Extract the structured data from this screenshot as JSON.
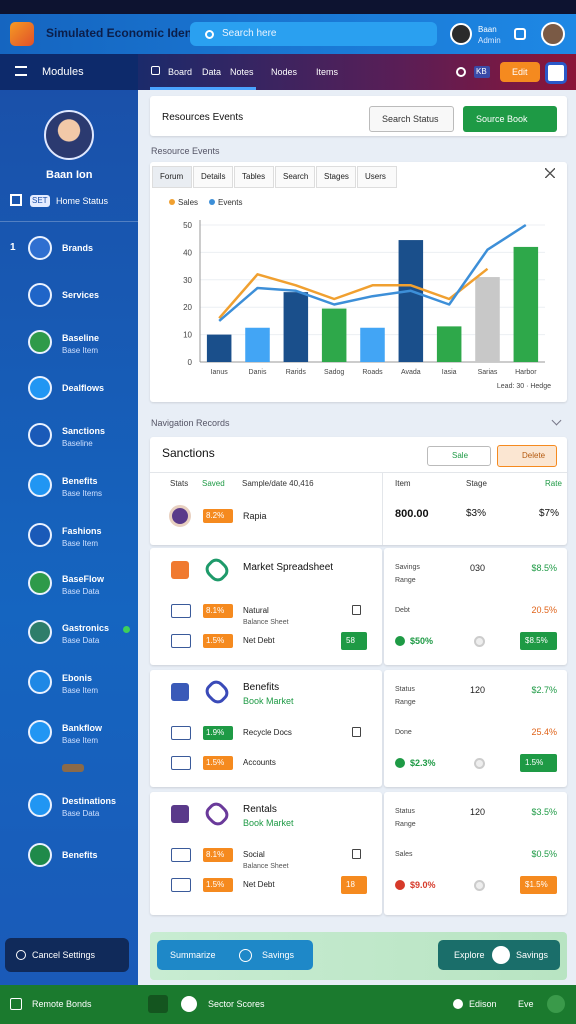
{
  "header": {
    "title": "Simulated Economic Identity",
    "search_placeholder": "Search here",
    "user_name": "Baan",
    "user_role": "Admin"
  },
  "sidebar": {
    "menu_title": "Modules",
    "profile_name": "Baan Ion",
    "status_badge": "SET",
    "profile_status": "Home Status",
    "items": [
      {
        "badge": "1",
        "label": "Brands"
      },
      {
        "label": "Services"
      },
      {
        "label": "Baseline",
        "sub": "Base Item"
      },
      {
        "label": "Dealflows"
      },
      {
        "label": "Sanctions",
        "sub": "Baseline"
      },
      {
        "label": "Benefits",
        "sub": "Base Items"
      },
      {
        "label": "Fashions",
        "sub": "Base Item"
      },
      {
        "label": "BaseFlow",
        "sub": "Base Data"
      },
      {
        "label": "Gastronics",
        "sub": "Base Data"
      },
      {
        "label": "Ebonis",
        "sub": "Base Item"
      },
      {
        "label": "Bankflow",
        "sub": "Base Item"
      },
      {
        "label": "Destinations",
        "sub": "Base Data"
      },
      {
        "label": "Benefits"
      }
    ],
    "bottom_button": "Cancel Settings"
  },
  "nav": {
    "tabs": [
      "Board",
      "Data",
      "Notes",
      "Nodes",
      "Items"
    ],
    "badge": "KB",
    "button": "Edit"
  },
  "resources": {
    "title": "Resources Events",
    "button_secondary": "Search Status",
    "button_primary": "Source Book"
  },
  "section_events": "Resource Events",
  "chart_tabs": [
    "Forum",
    "Details",
    "Tables",
    "Search",
    "Stages",
    "Users"
  ],
  "chart": {
    "type": "bar",
    "categories": [
      "Ianus",
      "Danis",
      "Rarids",
      "Sadog",
      "Roads",
      "Avada",
      "Iasia",
      "Sarias",
      "Harbor"
    ],
    "values": [
      10,
      12.5,
      25.5,
      19.5,
      12.5,
      44.5,
      13,
      31,
      42
    ],
    "colors": [
      "#1a4f8b",
      "#42a5f5",
      "#1a4f8b",
      "#2ea84a",
      "#42a5f5",
      "#1a4f8b",
      "#2ea84a",
      "#c8c8c8",
      "#2ea84a"
    ],
    "series": [
      {
        "name": "Sales",
        "color": "#f0a030",
        "values": [
          16,
          32,
          28,
          23,
          28,
          28,
          23,
          34,
          null
        ]
      },
      {
        "name": "Events",
        "color": "#3d8fd8",
        "values": [
          15,
          27,
          26,
          21,
          24,
          26,
          21,
          41,
          50
        ]
      }
    ],
    "ylim": [
      0,
      50
    ],
    "yticks": [
      0,
      10,
      20,
      30,
      40,
      50
    ],
    "grid": true,
    "note": "Lead: 30 · Hedge"
  },
  "section_records": "Navigation Records",
  "table": {
    "title": "Sanctions",
    "filter_button": "Sale",
    "action_button": "Delete",
    "left_headers": [
      "Stats",
      "Saved",
      "Sample/date 40,416"
    ],
    "right_headers": [
      "Item",
      "Stage",
      "Rate"
    ],
    "row": {
      "badge": "8.2%",
      "label": "Rapia",
      "values": [
        "800.00",
        "$3%",
        "$7%"
      ]
    }
  },
  "cards": [
    {
      "title": "Market Spreadsheet",
      "rows": [
        {
          "badge": "8.1%",
          "label": "Natural",
          "sublabel": "Balance Sheet"
        },
        {
          "badge": "1.5%",
          "label": "Net Debt",
          "button": "58"
        }
      ],
      "right": {
        "label1": "Savings",
        "value1": "030",
        "change1": "$8.5%",
        "label2": "Range",
        "label3": "Debt",
        "value3": "20.5%",
        "bottom_value": "$50%",
        "bottom_button": "$8.5%"
      }
    },
    {
      "title": "Benefits",
      "subtitle": "Book Market",
      "rows": [
        {
          "badge": "1.9%",
          "label": "Recycle Docs"
        },
        {
          "badge": "1.5%",
          "label": "Accounts"
        }
      ],
      "right": {
        "label1": "Status",
        "value1": "120",
        "change1": "$2.7%",
        "label2": "Range",
        "label3": "Done",
        "value3": "25.4%",
        "bottom_value": "$2.3%",
        "bottom_button": "1.5%"
      }
    },
    {
      "title": "Rentals",
      "subtitle": "Book Market",
      "rows": [
        {
          "badge": "8.1%",
          "label": "Social",
          "sublabel": "Balance Sheet"
        },
        {
          "badge": "1.5%",
          "label": "Net Debt",
          "button": "18"
        }
      ],
      "right": {
        "label1": "Status",
        "value1": "120",
        "change1": "$3.5%",
        "label2": "Range",
        "label3": "Sales",
        "value3": "$0.5%",
        "bottom_value": "$9.0%",
        "bottom_button": "$1.5%"
      }
    }
  ],
  "bottom_panel": {
    "left_button": "Summarize",
    "left_label": "Savings",
    "right_button": "Explore",
    "right_label": "Savings"
  },
  "footer": {
    "left": "Remote Bonds",
    "center": "Sector Scores",
    "right1": "Edison",
    "right2": "Eve"
  }
}
